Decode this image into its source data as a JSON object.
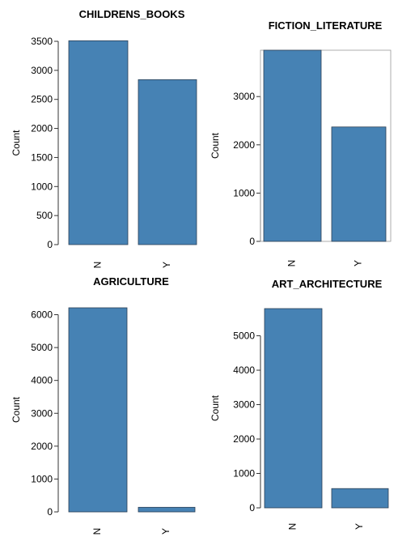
{
  "chart_data": [
    {
      "type": "bar",
      "title": "CHILDRENS_BOOKS",
      "ylabel": "Count",
      "categories": [
        "N",
        "Y"
      ],
      "values": [
        3510,
        2840
      ],
      "ylim": [
        0,
        3500
      ],
      "yticks": [
        "0",
        "500",
        "1000",
        "1500",
        "2000",
        "2500",
        "3000",
        "3500"
      ]
    },
    {
      "type": "bar",
      "title": "FICTION_LITERATURE",
      "ylabel": "Count",
      "categories": [
        "N",
        "Y"
      ],
      "values": [
        3960,
        2370
      ],
      "ylim": [
        0,
        3960
      ],
      "yticks": [
        "0",
        "1000",
        "2000",
        "3000"
      ]
    },
    {
      "type": "bar",
      "title": "AGRICULTURE",
      "ylabel": "Count",
      "categories": [
        "N",
        "Y"
      ],
      "values": [
        6210,
        140
      ],
      "ylim": [
        0,
        6210
      ],
      "yticks": [
        "0",
        "1000",
        "2000",
        "3000",
        "4000",
        "5000",
        "6000"
      ]
    },
    {
      "type": "bar",
      "title": "ART_ARCHITECTURE",
      "ylabel": "Count",
      "categories": [
        "N",
        "Y"
      ],
      "values": [
        5790,
        560
      ],
      "ylim": [
        0,
        5790
      ],
      "yticks": [
        "0",
        "1000",
        "2000",
        "3000",
        "4000",
        "5000"
      ]
    }
  ]
}
